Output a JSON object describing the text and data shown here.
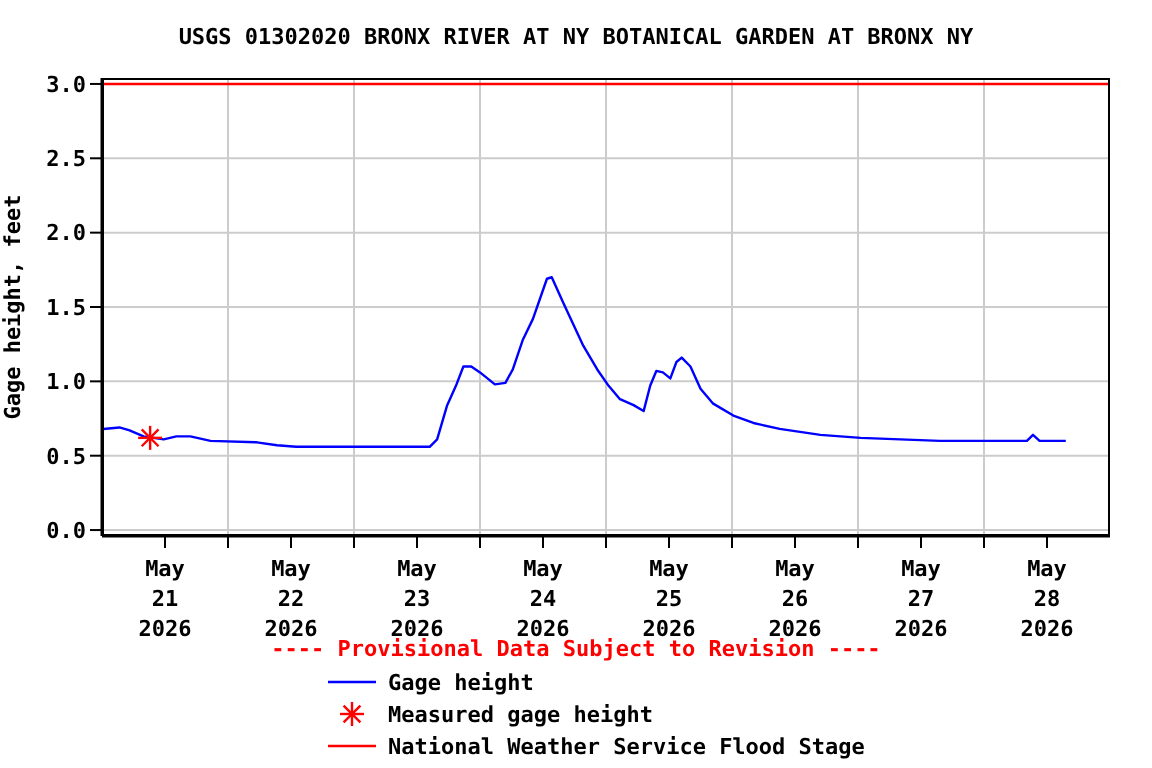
{
  "chart_data": {
    "type": "line",
    "title": "USGS 01302020 BRONX RIVER AT NY BOTANICAL GARDEN AT BRONX NY",
    "ylabel": "Gage height, feet",
    "annotations": [
      "---- Provisional Data Subject to Revision ----"
    ],
    "series": [
      {
        "name": "Gage height",
        "color": "#0000ff",
        "x": [
          "2026-05-21T00:15",
          "2026-05-21T03:20",
          "2026-05-21T05:15",
          "2026-05-21T07:55",
          "2026-05-21T11:45",
          "2026-05-21T14:10",
          "2026-05-21T16:50",
          "2026-05-21T20:40",
          "2026-05-22T05:30",
          "2026-05-22T09:20",
          "2026-05-22T13:00",
          "2026-05-23T00:30",
          "2026-05-23T14:25",
          "2026-05-23T15:50",
          "2026-05-23T17:45",
          "2026-05-23T19:25",
          "2026-05-23T20:50",
          "2026-05-23T22:20",
          "2026-05-24T00:00",
          "2026-05-24T02:50",
          "2026-05-24T04:50",
          "2026-05-24T06:15",
          "2026-05-24T08:10",
          "2026-05-24T10:05",
          "2026-05-24T12:45",
          "2026-05-24T13:40",
          "2026-05-24T15:50",
          "2026-05-24T19:40",
          "2026-05-24T22:20",
          "2026-05-25T00:30",
          "2026-05-25T02:40",
          "2026-05-25T05:15",
          "2026-05-25T07:10",
          "2026-05-25T08:25",
          "2026-05-25T09:35",
          "2026-05-25T10:50",
          "2026-05-25T12:15",
          "2026-05-25T13:25",
          "2026-05-25T14:25",
          "2026-05-25T16:05",
          "2026-05-25T18:00",
          "2026-05-25T20:25",
          "2026-05-26T00:15",
          "2026-05-26T04:05",
          "2026-05-26T09:05",
          "2026-05-26T16:50",
          "2026-05-27T00:30",
          "2026-05-27T15:35",
          "2026-05-28T08:10",
          "2026-05-28T09:20",
          "2026-05-28T10:35",
          "2026-05-28T15:35"
        ],
        "values": [
          0.68,
          0.69,
          0.67,
          0.63,
          0.61,
          0.63,
          0.63,
          0.6,
          0.59,
          0.57,
          0.56,
          0.56,
          0.56,
          0.61,
          0.84,
          0.97,
          1.1,
          1.1,
          1.06,
          0.98,
          0.99,
          1.08,
          1.28,
          1.42,
          1.69,
          1.7,
          1.53,
          1.24,
          1.08,
          0.97,
          0.88,
          0.84,
          0.8,
          0.97,
          1.07,
          1.06,
          1.02,
          1.13,
          1.16,
          1.1,
          0.95,
          0.85,
          0.77,
          0.72,
          0.68,
          0.64,
          0.62,
          0.6,
          0.6,
          0.64,
          0.6,
          0.6
        ]
      },
      {
        "name": "Measured gage height",
        "type": "scatter",
        "color": "#ff0000",
        "marker": "cross",
        "x": [
          "2026-05-21T09:10"
        ],
        "values": [
          0.62
        ]
      },
      {
        "name": "National Weather Service Flood Stage",
        "color": "#ff0000",
        "x": [
          "2026-05-21",
          "2026-05-29"
        ],
        "values": [
          3.0,
          3.0
        ]
      }
    ],
    "xlim": [
      "2026-05-21",
      "2026-05-29"
    ],
    "xticks": [
      {
        "value": "2026-05-21T12:00",
        "label": "May 21 2026"
      },
      {
        "value": "2026-05-22",
        "label": null
      },
      {
        "value": "2026-05-22T12:00",
        "label": "May 22 2026"
      },
      {
        "value": "2026-05-23",
        "label": null
      },
      {
        "value": "2026-05-23T12:00",
        "label": "May 23 2026"
      },
      {
        "value": "2026-05-24",
        "label": null
      },
      {
        "value": "2026-05-24T12:00",
        "label": "May 24 2026"
      },
      {
        "value": "2026-05-25",
        "label": null
      },
      {
        "value": "2026-05-25T12:00",
        "label": "May 25 2026"
      },
      {
        "value": "2026-05-26",
        "label": null
      },
      {
        "value": "2026-05-26T12:00",
        "label": "May 26 2026"
      },
      {
        "value": "2026-05-27",
        "label": null
      },
      {
        "value": "2026-05-27T12:00",
        "label": "May 27 2026"
      },
      {
        "value": "2026-05-28",
        "label": null
      },
      {
        "value": "2026-05-28T12:00",
        "label": "May 28 2026"
      }
    ],
    "ylim": [
      -0.04,
      3.04
    ],
    "yticks": [
      {
        "value": 0,
        "label": "0.0"
      },
      {
        "value": 0.5,
        "label": "0.5"
      },
      {
        "value": 1,
        "label": "1.0"
      },
      {
        "value": 1.5,
        "label": "1.5"
      },
      {
        "value": 2,
        "label": "2.0"
      },
      {
        "value": 2.5,
        "label": "2.5"
      },
      {
        "value": 3,
        "label": "3.0"
      }
    ],
    "grid": true,
    "legend": "bottom"
  }
}
